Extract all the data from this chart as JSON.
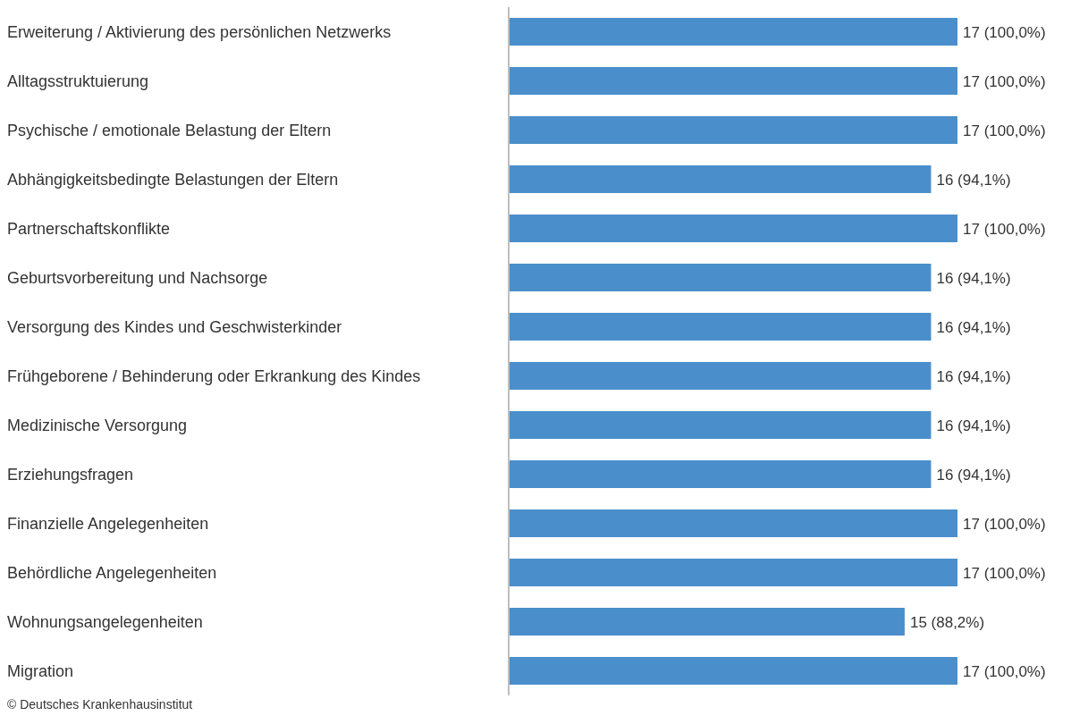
{
  "chart_data": {
    "type": "bar",
    "orientation": "horizontal",
    "categories": [
      "Erweiterung / Aktivierung des persönlichen Netzwerks",
      "Alltagsstruktuierung",
      "Psychische / emotionale Belastung der Eltern",
      "Abhängigkeitsbedingte Belastungen der Eltern",
      "Partnerschaftskonflikte",
      "Geburtsvorbereitung und Nachsorge",
      "Versorgung des Kindes und Geschwisterkinder",
      "Frühgeborene / Behinderung oder Erkrankung des Kindes",
      "Medizinische Versorgung",
      "Erziehungsfragen",
      "Finanzielle Angelegenheiten",
      "Behördliche Angelegenheiten",
      "Wohnungsangelegenheiten",
      "Migration"
    ],
    "values": [
      17,
      17,
      17,
      16,
      17,
      16,
      16,
      16,
      16,
      16,
      17,
      17,
      15,
      17
    ],
    "value_labels": [
      "17 (100,0%)",
      "17 (100,0%)",
      "17 (100,0%)",
      "16 (94,1%)",
      "17 (100,0%)",
      "16 (94,1%)",
      "16 (94,1%)",
      "16 (94,1%)",
      "16 (94,1%)",
      "16 (94,1%)",
      "17 (100,0%)",
      "17 (100,0%)",
      "15 (88,2%)",
      "17 (100,0%)"
    ],
    "color": "#4a8fcb",
    "annotations": [
      "© Deutsches Krankenhausinstitut"
    ]
  }
}
